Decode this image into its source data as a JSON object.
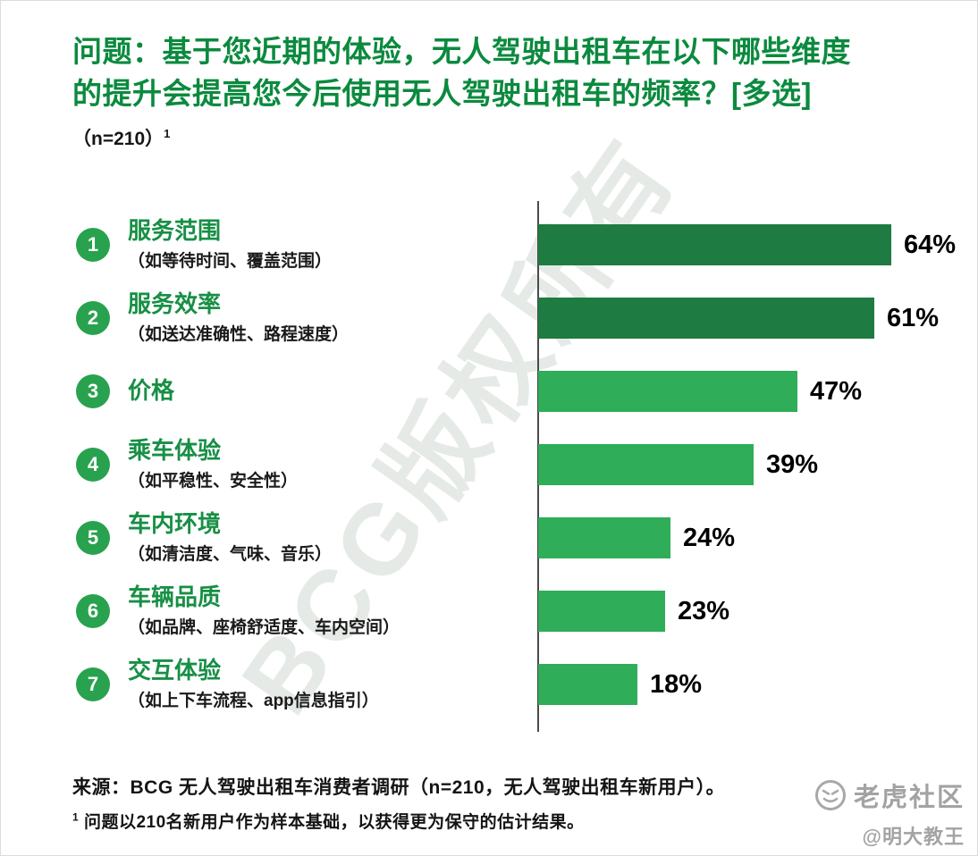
{
  "header": {
    "title_line1": "问题：基于您近期的体验，无人驾驶出租车在以下哪些维度",
    "title_line2": "的提升会提高您今后使用无人驾驶出租车的频率？[多选]",
    "sample_note": "（n=210）",
    "sample_sup": "1"
  },
  "chart_data": {
    "type": "bar",
    "orientation": "horizontal",
    "value_suffix": "%",
    "xlim": [
      0,
      70
    ],
    "grid": false,
    "legend": "none",
    "bar_color_top2": "#1e7b42",
    "bar_color_rest": "#2fad58",
    "categories": [
      {
        "rank": "1",
        "label": "服务范围",
        "sublabel": "（如等待时间、覆盖范围）",
        "value": 64,
        "color": "#1e7b42"
      },
      {
        "rank": "2",
        "label": "服务效率",
        "sublabel": "（如送达准确性、路程速度）",
        "value": 61,
        "color": "#1e7b42"
      },
      {
        "rank": "3",
        "label": "价格",
        "sublabel": "",
        "value": 47,
        "color": "#2fad58"
      },
      {
        "rank": "4",
        "label": "乘车体验",
        "sublabel": "（如平稳性、安全性）",
        "value": 39,
        "color": "#2fad58"
      },
      {
        "rank": "5",
        "label": "车内环境",
        "sublabel": "（如清洁度、气味、音乐）",
        "value": 24,
        "color": "#2fad58"
      },
      {
        "rank": "6",
        "label": "车辆品质",
        "sublabel": "（如品牌、座椅舒适度、车内空间）",
        "value": 23,
        "color": "#2fad58"
      },
      {
        "rank": "7",
        "label": "交互体验",
        "sublabel": "（如上下车流程、app信息指引）",
        "value": 18,
        "color": "#2fad58"
      }
    ]
  },
  "footer": {
    "source_label": "来源：",
    "source_text": "BCG 无人驾驶出租车消费者调研（n=210，无人驾驶出租车新用户）。",
    "footnote_sup": "1",
    "footnote_text": "问题以210名新用户作为样本基础，以获得更为保守的估计结果。"
  },
  "watermarks": {
    "diagonal": "BCG版权所有",
    "community_name": "老虎社区",
    "author_handle": "@明大教王"
  }
}
